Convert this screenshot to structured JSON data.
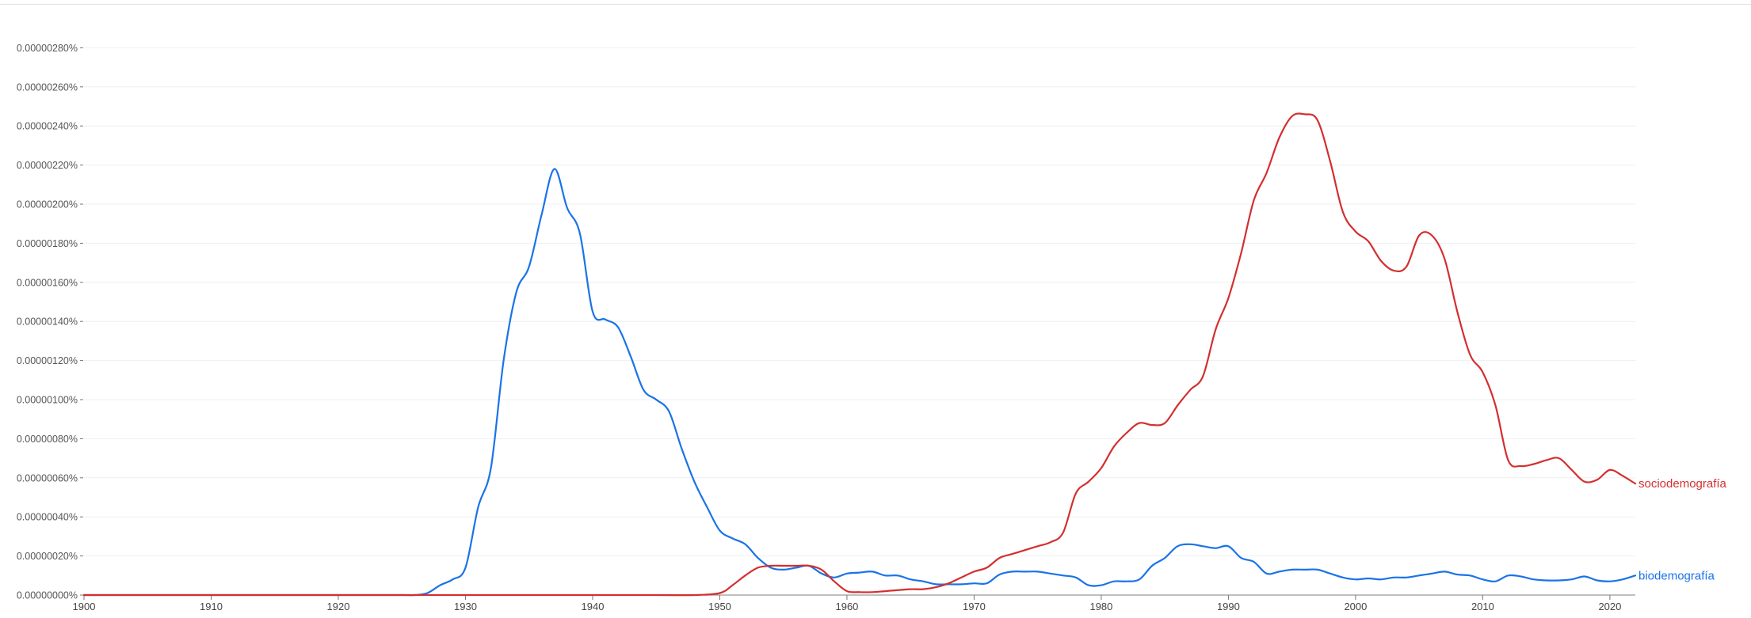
{
  "chart_data": {
    "type": "line",
    "title": "",
    "xlabel": "",
    "ylabel": "",
    "xlim": [
      1900,
      2022
    ],
    "ylim": [
      0,
      2.9e-06
    ],
    "grid": true,
    "legend": "series labels at right end of lines",
    "x_ticks": [
      1900,
      1910,
      1920,
      1930,
      1940,
      1950,
      1960,
      1970,
      1980,
      1990,
      2000,
      2010,
      2020
    ],
    "y_ticks": [
      0,
      2e-07,
      4e-07,
      6e-07,
      8e-07,
      1e-06,
      1.2e-06,
      1.4e-06,
      1.6e-06,
      1.8e-06,
      2e-06,
      2.2e-06,
      2.4e-06,
      2.6e-06,
      2.8e-06
    ],
    "y_tick_labels": [
      "0.00000000%",
      "0.00000020%",
      "0.00000040%",
      "0.00000060%",
      "0.00000080%",
      "0.00000100%",
      "0.00000120%",
      "0.00000140%",
      "0.00000160%",
      "0.00000180%",
      "0.00000200%",
      "0.00000220%",
      "0.00000240%",
      "0.00000260%",
      "0.00000280%"
    ],
    "series": [
      {
        "name": "sociodemografía",
        "color": "#d32f2f",
        "x": [
          1900,
          1905,
          1910,
          1915,
          1920,
          1925,
          1930,
          1935,
          1940,
          1945,
          1948,
          1950,
          1951,
          1952,
          1953,
          1954,
          1955,
          1956,
          1957,
          1958,
          1959,
          1960,
          1961,
          1962,
          1963,
          1964,
          1965,
          1966,
          1967,
          1968,
          1969,
          1970,
          1971,
          1972,
          1973,
          1974,
          1975,
          1976,
          1977,
          1978,
          1979,
          1980,
          1981,
          1982,
          1983,
          1984,
          1985,
          1986,
          1987,
          1988,
          1989,
          1990,
          1991,
          1992,
          1993,
          1994,
          1995,
          1996,
          1997,
          1998,
          1999,
          2000,
          2001,
          2002,
          2003,
          2004,
          2005,
          2006,
          2007,
          2008,
          2009,
          2010,
          2011,
          2012,
          2013,
          2014,
          2015,
          2016,
          2017,
          2018,
          2019,
          2020,
          2021,
          2022
        ],
        "values": [
          0,
          0,
          0,
          0,
          0,
          0,
          0,
          0,
          0,
          0,
          0,
          1e-08,
          5e-08,
          1e-07,
          1.4e-07,
          1.5e-07,
          1.5e-07,
          1.5e-07,
          1.5e-07,
          1.3e-07,
          7e-08,
          2e-08,
          1.5e-08,
          1.5e-08,
          2e-08,
          2.5e-08,
          3e-08,
          3e-08,
          4e-08,
          6e-08,
          9e-08,
          1.2e-07,
          1.4e-07,
          1.9e-07,
          2.1e-07,
          2.3e-07,
          2.5e-07,
          2.7e-07,
          3.2e-07,
          5.2e-07,
          5.8e-07,
          6.5e-07,
          7.6e-07,
          8.3e-07,
          8.8e-07,
          8.7e-07,
          8.8e-07,
          9.7e-07,
          1.05e-06,
          1.12e-06,
          1.36e-06,
          1.52e-06,
          1.75e-06,
          2.02e-06,
          2.16e-06,
          2.34e-06,
          2.45e-06,
          2.46e-06,
          2.43e-06,
          2.22e-06,
          1.96e-06,
          1.86e-06,
          1.81e-06,
          1.71e-06,
          1.66e-06,
          1.68e-06,
          1.84e-06,
          1.84e-06,
          1.72e-06,
          1.45e-06,
          1.23e-06,
          1.14e-06,
          9.7e-07,
          6.9e-07,
          6.6e-07,
          6.7e-07,
          6.9e-07,
          7e-07,
          6.4e-07,
          5.8e-07,
          5.9e-07,
          6.4e-07,
          6.1e-07,
          5.7e-07
        ]
      },
      {
        "name": "biodemografía",
        "color": "#1a73e8",
        "x": [
          1900,
          1905,
          1910,
          1915,
          1920,
          1925,
          1926,
          1927,
          1928,
          1929,
          1930,
          1931,
          1932,
          1933,
          1934,
          1935,
          1936,
          1937,
          1938,
          1939,
          1940,
          1941,
          1942,
          1943,
          1944,
          1945,
          1946,
          1947,
          1948,
          1949,
          1950,
          1951,
          1952,
          1953,
          1954,
          1955,
          1956,
          1957,
          1958,
          1959,
          1960,
          1961,
          1962,
          1963,
          1964,
          1965,
          1966,
          1967,
          1968,
          1969,
          1970,
          1971,
          1972,
          1973,
          1974,
          1975,
          1976,
          1977,
          1978,
          1979,
          1980,
          1981,
          1982,
          1983,
          1984,
          1985,
          1986,
          1987,
          1988,
          1989,
          1990,
          1991,
          1992,
          1993,
          1994,
          1995,
          1996,
          1997,
          1998,
          1999,
          2000,
          2001,
          2002,
          2003,
          2004,
          2005,
          2006,
          2007,
          2008,
          2009,
          2010,
          2011,
          2012,
          2013,
          2014,
          2015,
          2016,
          2017,
          2018,
          2019,
          2020,
          2021,
          2022
        ],
        "values": [
          0,
          0,
          0,
          0,
          0,
          0,
          0,
          1e-08,
          5e-08,
          8e-08,
          1.4e-07,
          4.5e-07,
          6.5e-07,
          1.2e-06,
          1.55e-06,
          1.68e-06,
          1.95e-06,
          2.18e-06,
          1.98e-06,
          1.85e-06,
          1.45e-06,
          1.41e-06,
          1.37e-06,
          1.22e-06,
          1.05e-06,
          1e-06,
          9.4e-07,
          7.5e-07,
          5.8e-07,
          4.5e-07,
          3.3e-07,
          2.9e-07,
          2.6e-07,
          1.9e-07,
          1.4e-07,
          1.3e-07,
          1.4e-07,
          1.5e-07,
          1.1e-07,
          9e-08,
          1.1e-07,
          1.15e-07,
          1.2e-07,
          1e-07,
          1e-07,
          8e-08,
          7e-08,
          5.5e-08,
          5.5e-08,
          5.5e-08,
          6e-08,
          6e-08,
          1.05e-07,
          1.2e-07,
          1.2e-07,
          1.2e-07,
          1.1e-07,
          1e-07,
          9e-08,
          5e-08,
          5e-08,
          7e-08,
          7e-08,
          8e-08,
          1.5e-07,
          1.9e-07,
          2.5e-07,
          2.6e-07,
          2.5e-07,
          2.4e-07,
          2.5e-07,
          1.9e-07,
          1.7e-07,
          1.1e-07,
          1.2e-07,
          1.3e-07,
          1.3e-07,
          1.3e-07,
          1.1e-07,
          9e-08,
          8e-08,
          8.5e-08,
          8e-08,
          9e-08,
          9e-08,
          1e-07,
          1.1e-07,
          1.2e-07,
          1.05e-07,
          1e-07,
          8e-08,
          7e-08,
          1e-07,
          9.5e-08,
          8e-08,
          7.5e-08,
          7.5e-08,
          8e-08,
          9.5e-08,
          7.5e-08,
          7e-08,
          8e-08,
          1e-07
        ]
      }
    ]
  }
}
